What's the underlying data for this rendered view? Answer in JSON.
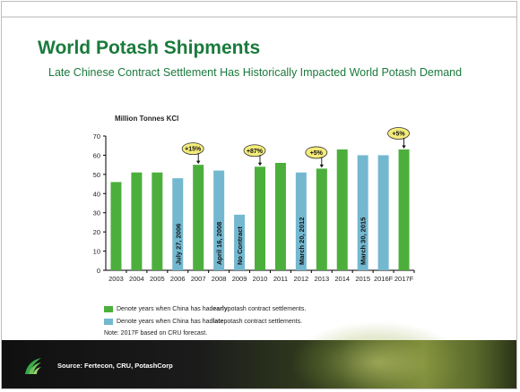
{
  "header": {
    "title": "World Potash Shipments",
    "subtitle": "Late Chinese Contract Settlement Has Historically Impacted World Potash Demand"
  },
  "colors": {
    "early": "#4caf3c",
    "late": "#74b8d0",
    "title": "#1a7a3c",
    "callout_fill": "#f4ec7a"
  },
  "chart_data": {
    "type": "bar",
    "ylabel": "Million Tonnes KCl",
    "ylim": [
      0,
      70
    ],
    "yticks": [
      0,
      10,
      20,
      30,
      40,
      50,
      60,
      70
    ],
    "categories": [
      "2003",
      "2004",
      "2005",
      "2006",
      "2007",
      "2008",
      "2009",
      "2010",
      "2011",
      "2012",
      "2013",
      "2014",
      "2015",
      "2016F",
      "2017F"
    ],
    "values": [
      46,
      51,
      51,
      48,
      55,
      52,
      29,
      54,
      56,
      51,
      53,
      63,
      60,
      60,
      63
    ],
    "settlement": [
      "early",
      "early",
      "early",
      "late",
      "early",
      "late",
      "late",
      "early",
      "early",
      "late",
      "early",
      "early",
      "late",
      "late",
      "early"
    ],
    "bar_labels": [
      {
        "category": "2006",
        "text": "July 27, 2006"
      },
      {
        "category": "2008",
        "text": "April 16, 2008"
      },
      {
        "category": "2009",
        "text": "No Contract"
      },
      {
        "category": "2012",
        "text": "March 20, 2012"
      },
      {
        "category": "2015",
        "text": "March 30, 2015"
      }
    ],
    "callouts": [
      {
        "category": "2007",
        "text": "+15%"
      },
      {
        "category": "2010",
        "text": "+87%"
      },
      {
        "category": "2013",
        "text": "+5%"
      },
      {
        "category": "2017F",
        "text": "+5%"
      }
    ]
  },
  "legend": {
    "early": {
      "prefix": "Denote years when China has had ",
      "emphasis": "early",
      "suffix": " potash contract settlements."
    },
    "late": {
      "prefix": "Denote years when China has had ",
      "emphasis": "late",
      "suffix": " potash contract settlements."
    }
  },
  "note": "Note: 2017F based on CRU forecast.",
  "footer": {
    "source": "Source: Fertecon, CRU, PotashCorp"
  }
}
